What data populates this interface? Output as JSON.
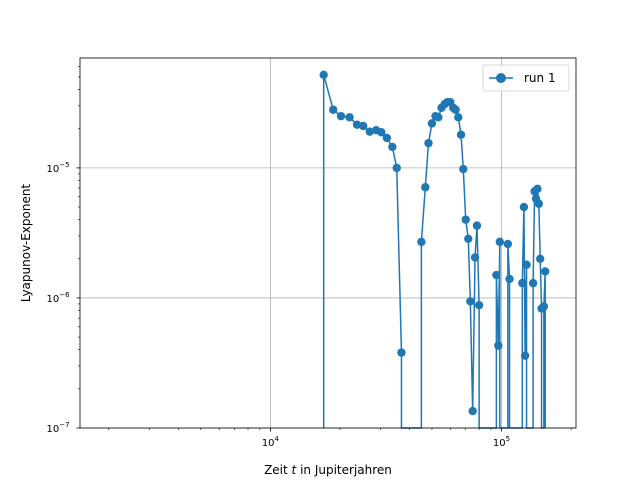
{
  "chart_data": {
    "type": "line",
    "title": "",
    "xlabel_prefix": "Zeit ",
    "xlabel_var": "t",
    "xlabel_suffix": " in Jupiterjahren",
    "ylabel": "Lyapunov-Exponent",
    "xscale": "log",
    "yscale": "log",
    "xlim": [
      1500,
      210000
    ],
    "ylim": [
      1e-07,
      7e-05
    ],
    "grid": true,
    "legend": "top-right",
    "x_ticks": [
      {
        "value": 10000,
        "base": "10",
        "exp": "4"
      },
      {
        "value": 100000,
        "base": "10",
        "exp": "5"
      }
    ],
    "y_ticks": [
      {
        "value": 1e-07,
        "base": "10",
        "exp": "−7"
      },
      {
        "value": 1e-06,
        "base": "10",
        "exp": "−6"
      },
      {
        "value": 1e-05,
        "base": "10",
        "exp": "−5"
      }
    ],
    "series": [
      {
        "name": "run 1",
        "color": "#1f77b4",
        "points": [
          [
            17000,
            1e-07
          ],
          [
            17000,
            5.2e-05
          ],
          [
            18700,
            2.8e-05
          ],
          [
            20200,
            2.5e-05
          ],
          [
            22000,
            2.45e-05
          ],
          [
            23700,
            2.15e-05
          ],
          [
            25200,
            2.1e-05
          ],
          [
            26900,
            1.9e-05
          ],
          [
            28700,
            1.95e-05
          ],
          [
            30200,
            1.88e-05
          ],
          [
            31900,
            1.7e-05
          ],
          [
            33700,
            1.45e-05
          ],
          [
            35200,
            1e-05
          ],
          [
            36900,
            3.8e-07
          ],
          [
            36900,
            1e-07
          ],
          [
            45000,
            1e-07
          ],
          [
            45000,
            2.7e-06
          ],
          [
            46800,
            7.1e-06
          ],
          [
            48300,
            1.55e-05
          ],
          [
            50000,
            2.2e-05
          ],
          [
            51800,
            2.5e-05
          ],
          [
            53300,
            2.45e-05
          ],
          [
            55000,
            2.9e-05
          ],
          [
            56800,
            3.1e-05
          ],
          [
            58300,
            3.2e-05
          ],
          [
            60000,
            3.2e-05
          ],
          [
            61800,
            2.9e-05
          ],
          [
            63300,
            2.8e-05
          ],
          [
            65000,
            2.45e-05
          ],
          [
            66800,
            1.8e-05
          ],
          [
            68300,
            9.8e-06
          ],
          [
            70000,
            4e-06
          ],
          [
            71800,
            2.85e-06
          ],
          [
            73300,
            9.4e-07
          ],
          [
            75000,
            1.35e-07
          ],
          [
            76800,
            2.05e-06
          ],
          [
            78300,
            3.6e-06
          ],
          [
            80000,
            8.8e-07
          ],
          [
            80000,
            1e-07
          ],
          [
            95000,
            1e-07
          ],
          [
            95000,
            1.5e-06
          ],
          [
            96800,
            4.3e-07
          ],
          [
            98300,
            2.7e-06
          ],
          [
            98300,
            1e-07
          ],
          [
            106500,
            1e-07
          ],
          [
            106500,
            2.6e-06
          ],
          [
            108300,
            1.4e-06
          ],
          [
            108300,
            1e-07
          ],
          [
            123000,
            1e-07
          ],
          [
            123000,
            1.3e-06
          ],
          [
            125000,
            5e-06
          ],
          [
            126500,
            3.6e-07
          ],
          [
            128300,
            1.8e-06
          ],
          [
            128300,
            1e-07
          ],
          [
            137000,
            1e-07
          ],
          [
            137000,
            1.3e-06
          ],
          [
            139000,
            6.6e-06
          ],
          [
            141000,
            5.8e-06
          ],
          [
            143000,
            6.9e-06
          ],
          [
            145000,
            5.3e-06
          ],
          [
            147000,
            2e-06
          ],
          [
            149000,
            8.3e-07
          ],
          [
            149000,
            1e-07
          ],
          [
            152500,
            1e-07
          ],
          [
            152500,
            8.6e-07
          ],
          [
            154500,
            1.6e-06
          ],
          [
            154500,
            1e-07
          ]
        ],
        "visible_markers": [
          [
            17000,
            5.2e-05
          ],
          [
            18700,
            2.8e-05
          ],
          [
            20200,
            2.5e-05
          ],
          [
            22000,
            2.45e-05
          ],
          [
            23700,
            2.15e-05
          ],
          [
            25200,
            2.1e-05
          ],
          [
            26900,
            1.9e-05
          ],
          [
            28700,
            1.95e-05
          ],
          [
            30200,
            1.88e-05
          ],
          [
            31900,
            1.7e-05
          ],
          [
            33700,
            1.45e-05
          ],
          [
            35200,
            1e-05
          ],
          [
            36900,
            3.8e-07
          ],
          [
            45000,
            2.7e-06
          ],
          [
            46800,
            7.1e-06
          ],
          [
            48300,
            1.55e-05
          ],
          [
            50000,
            2.2e-05
          ],
          [
            51800,
            2.5e-05
          ],
          [
            53300,
            2.45e-05
          ],
          [
            55000,
            2.9e-05
          ],
          [
            56800,
            3.1e-05
          ],
          [
            58300,
            3.2e-05
          ],
          [
            60000,
            3.2e-05
          ],
          [
            61800,
            2.9e-05
          ],
          [
            63300,
            2.8e-05
          ],
          [
            65000,
            2.45e-05
          ],
          [
            66800,
            1.8e-05
          ],
          [
            68300,
            9.8e-06
          ],
          [
            70000,
            4e-06
          ],
          [
            71800,
            2.85e-06
          ],
          [
            73300,
            9.4e-07
          ],
          [
            75000,
            1.35e-07
          ],
          [
            76800,
            2.05e-06
          ],
          [
            78300,
            3.6e-06
          ],
          [
            80000,
            8.8e-07
          ],
          [
            95000,
            1.5e-06
          ],
          [
            96800,
            4.3e-07
          ],
          [
            98300,
            2.7e-06
          ],
          [
            106500,
            2.6e-06
          ],
          [
            108300,
            1.4e-06
          ],
          [
            123000,
            1.3e-06
          ],
          [
            125000,
            5e-06
          ],
          [
            126500,
            3.6e-07
          ],
          [
            128300,
            1.8e-06
          ],
          [
            137000,
            1.3e-06
          ],
          [
            139000,
            6.6e-06
          ],
          [
            141000,
            5.8e-06
          ],
          [
            143000,
            6.9e-06
          ],
          [
            145000,
            5.3e-06
          ],
          [
            147000,
            2e-06
          ],
          [
            149000,
            8.3e-07
          ],
          [
            152500,
            8.6e-07
          ],
          [
            154500,
            1.6e-06
          ]
        ]
      }
    ]
  }
}
